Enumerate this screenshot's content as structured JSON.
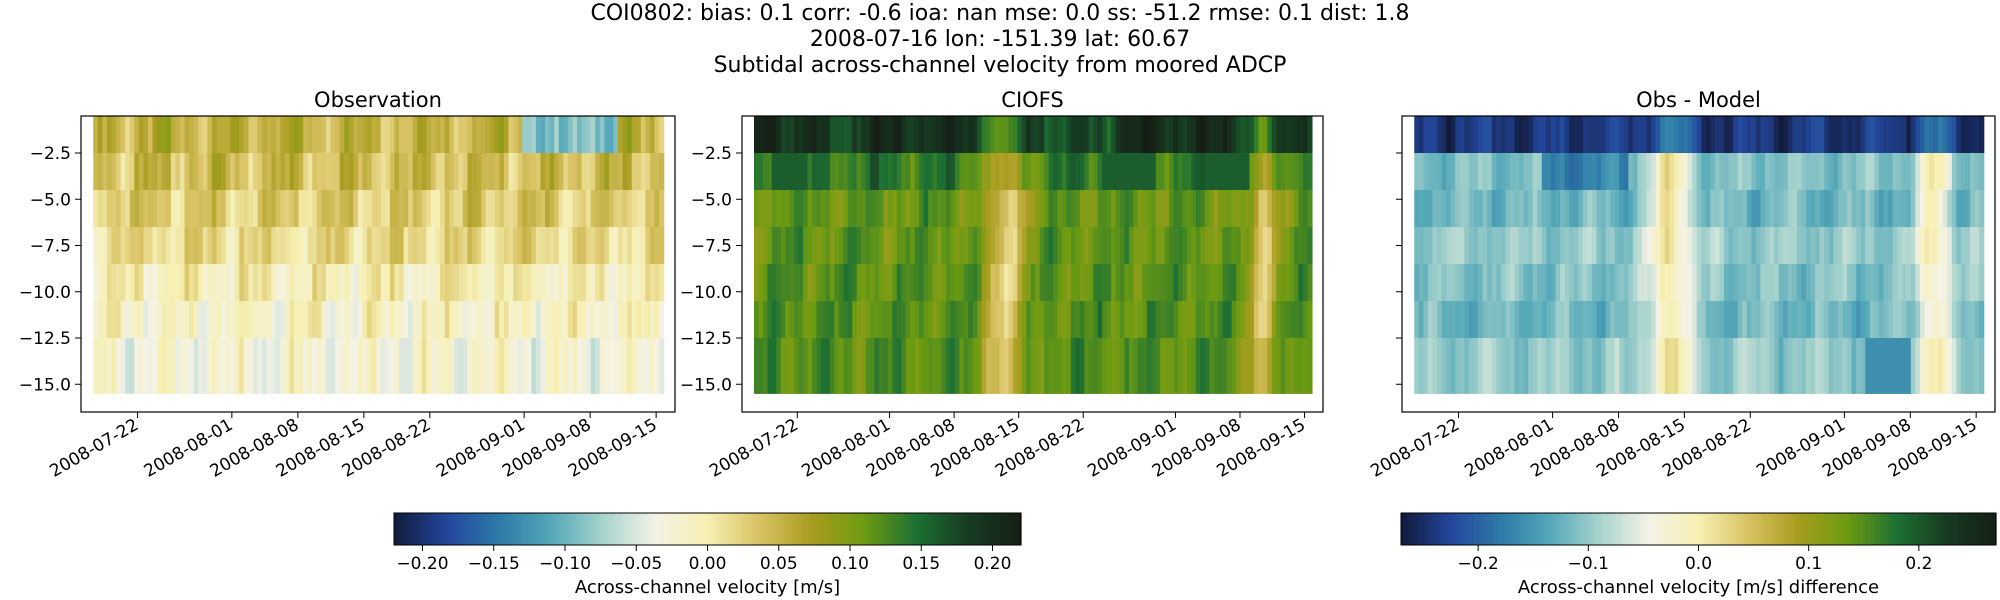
{
  "figure": {
    "title_lines": [
      "COI0802: bias: 0.1  corr: -0.6  ioa: nan  mse: 0.0  ss: -51.2  rmse: 0.1  dist: 1.8",
      "2008-07-16 lon: -151.39 lat: 60.67",
      "Subtidal across-channel velocity from moored ADCP"
    ]
  },
  "chart_data": [
    {
      "type": "heatmap",
      "title": "Observation",
      "x_tick_labels": [
        "2008-07-22",
        "2008-08-01",
        "2008-08-08",
        "2008-08-15",
        "2008-08-22",
        "2008-09-01",
        "2008-09-08",
        "2008-09-15"
      ],
      "y_tick_labels": [
        "-2.5",
        "-5.0",
        "-7.5",
        "-10.0",
        "-12.5",
        "-15.0"
      ],
      "y_ticks": [
        -2.5,
        -5.0,
        -7.5,
        -10.0,
        -12.5,
        -15.0
      ],
      "ylim": [
        -16.5,
        -0.5
      ],
      "xlim": [
        "2008-07-16",
        "2008-09-17"
      ],
      "depth_levels": [
        -2.5,
        -4.5,
        -6.5,
        -8.5,
        -10.5,
        -12.5,
        -14.5
      ],
      "colormap": "diverging (delta)",
      "clim": [
        -0.22,
        0.22
      ],
      "value_pattern": "weak values mostly 0.00 to 0.06 m/s; slightly positive near surface, slightly negative at depth; near-surface negative (~-0.1) around 2008-09-01 to 2008-09-12"
    },
    {
      "type": "heatmap",
      "title": "CIOFS",
      "x_tick_labels": [
        "2008-07-22",
        "2008-08-01",
        "2008-08-08",
        "2008-08-15",
        "2008-08-22",
        "2008-09-01",
        "2008-09-08",
        "2008-09-15"
      ],
      "y_tick_labels": [
        "-2.5",
        "-5.0",
        "-7.5",
        "-10.0",
        "-12.5",
        "-15.0"
      ],
      "y_ticks": [
        -2.5,
        -5.0,
        -7.5,
        -10.0,
        -12.5,
        -15.0
      ],
      "ylim": [
        -16.5,
        -0.5
      ],
      "colormap": "diverging (delta)",
      "clim": [
        -0.22,
        0.22
      ],
      "value_pattern": "positive everywhere, ~0.20 m/s at top bin, ~0.10-0.14 m/s below; weaker (~0.03) near 2008-08-14 and 2008-09-11"
    },
    {
      "type": "heatmap",
      "title": "Obs - Model",
      "x_tick_labels": [
        "2008-07-22",
        "2008-08-01",
        "2008-08-08",
        "2008-08-15",
        "2008-08-22",
        "2008-09-01",
        "2008-09-08",
        "2008-09-15"
      ],
      "y_ticks": [
        -2.5,
        -5.0,
        -7.5,
        -10.0,
        -12.5,
        -15.0
      ],
      "ylim": [
        -16.5,
        -0.5
      ],
      "colormap": "diverging (delta)",
      "clim": [
        -0.27,
        0.27
      ],
      "value_pattern": "negative everywhere, ~-0.25 at top bin, ~-0.08 to -0.12 below; near zero around 2008-08-14 and 2008-09-11"
    }
  ],
  "colorbars": [
    {
      "label": "Across-channel velocity [m/s]",
      "tick_labels": [
        "−0.20",
        "−0.15",
        "−0.10",
        "−0.05",
        "0.00",
        "0.05",
        "0.10",
        "0.15",
        "0.20"
      ],
      "ticks": [
        -0.2,
        -0.15,
        -0.1,
        -0.05,
        0.0,
        0.05,
        0.1,
        0.15,
        0.2
      ],
      "range": [
        -0.22,
        0.22
      ]
    },
    {
      "label": "Across-channel velocity [m/s] difference",
      "tick_labels": [
        "−0.2",
        "−0.1",
        "0.0",
        "0.1",
        "0.2"
      ],
      "ticks": [
        -0.2,
        -0.1,
        0.0,
        0.1,
        0.2
      ],
      "range": [
        -0.27,
        0.27
      ]
    }
  ],
  "colors": {
    "cmap_stops": [
      "#111a3a",
      "#23469b",
      "#2d79a7",
      "#54a8b8",
      "#a7d3cd",
      "#f4f2e6",
      "#f7f0b3",
      "#d8c263",
      "#a89d20",
      "#6d9b12",
      "#1d7033",
      "#173b22",
      "#151e15"
    ]
  }
}
